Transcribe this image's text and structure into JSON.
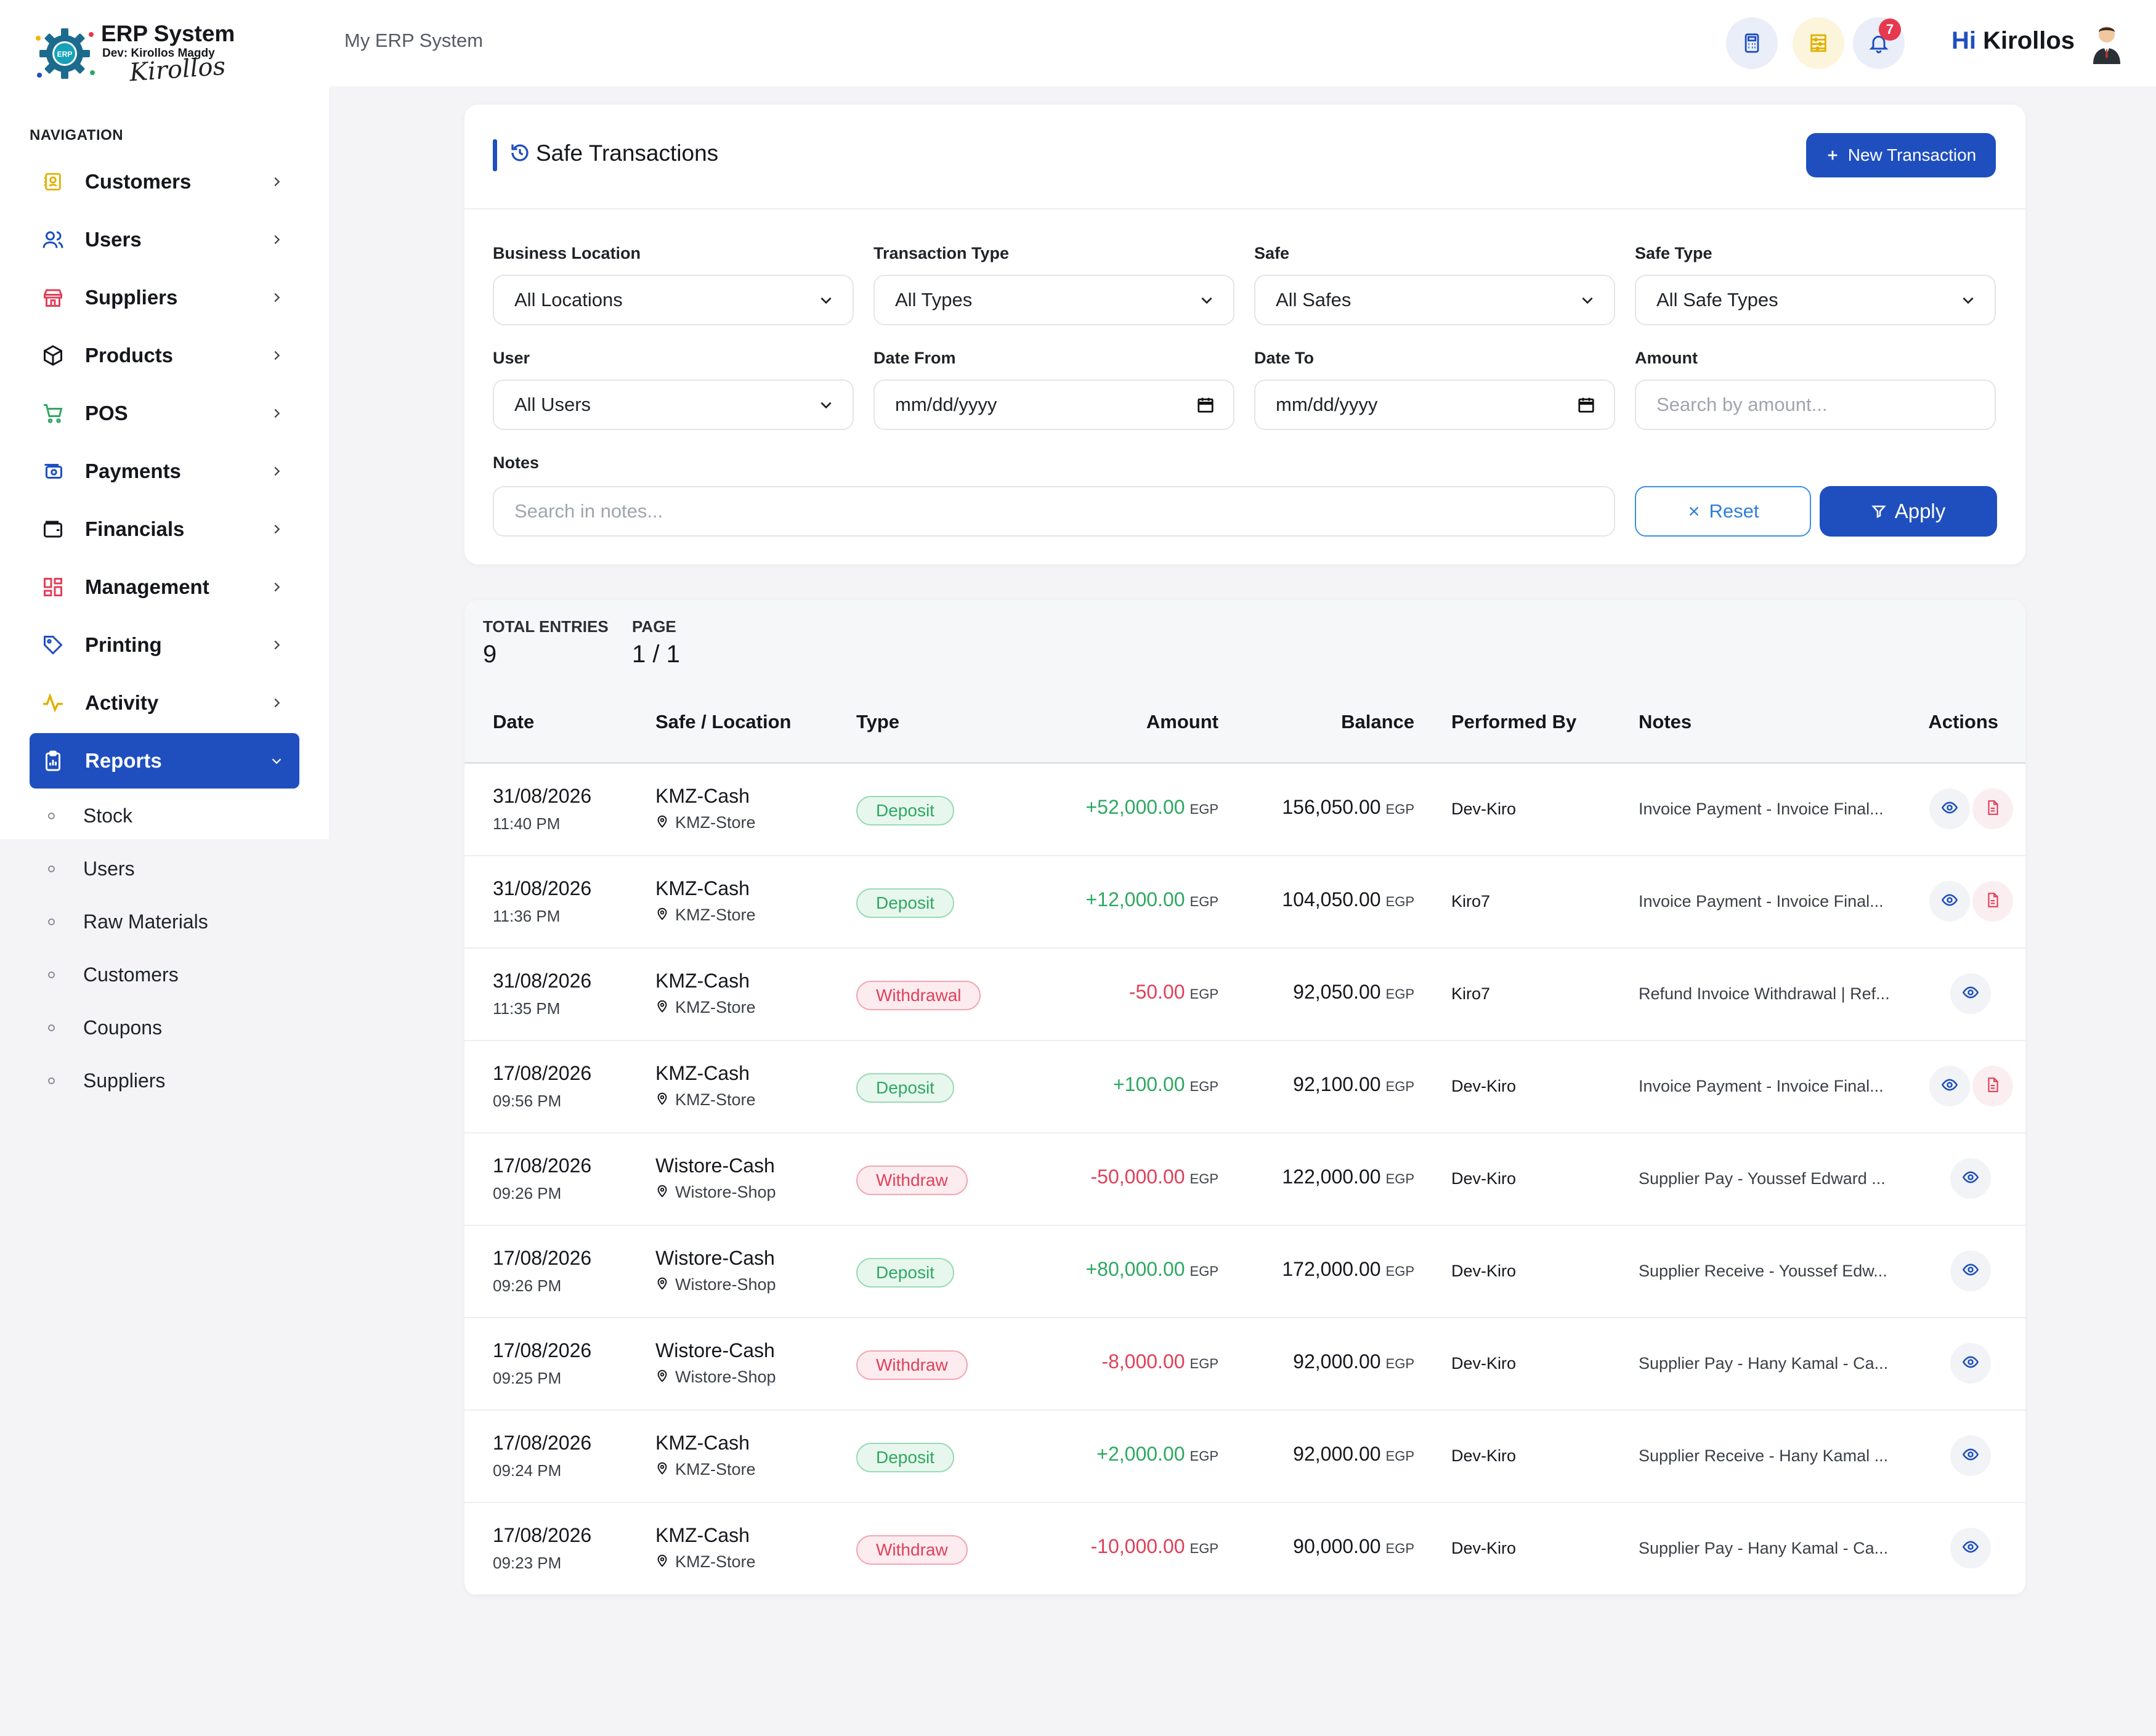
{
  "app": {
    "logo_title": "ERP System",
    "logo_dev": "Dev: Kirollos Magdy",
    "logo_signature": "Kirollos",
    "logo_gear_text": "ERP"
  },
  "sidebar": {
    "heading": "NAVIGATION",
    "items": [
      {
        "label": "Customers",
        "icon": "customers-icon"
      },
      {
        "label": "Users",
        "icon": "users-icon"
      },
      {
        "label": "Suppliers",
        "icon": "store-icon"
      },
      {
        "label": "Products",
        "icon": "box-icon"
      },
      {
        "label": "POS",
        "icon": "cart-icon"
      },
      {
        "label": "Payments",
        "icon": "payment-icon"
      },
      {
        "label": "Financials",
        "icon": "wallet-icon"
      },
      {
        "label": "Management",
        "icon": "grid-icon"
      },
      {
        "label": "Printing",
        "icon": "tag-icon"
      },
      {
        "label": "Activity",
        "icon": "activity-icon"
      },
      {
        "label": "Reports",
        "icon": "clipboard-icon",
        "active": true
      }
    ],
    "sub_items": [
      "Stock",
      "Users",
      "Raw Materials",
      "Customers",
      "Coupons",
      "Suppliers"
    ]
  },
  "topbar": {
    "breadcrumb": "My ERP System",
    "notification_count": "7",
    "greeting_hi": "Hi",
    "greeting_name": "Kirollos"
  },
  "filters": {
    "title": "Safe Transactions",
    "new_button": "New Transaction",
    "business_location": {
      "label": "Business Location",
      "value": "All Locations"
    },
    "transaction_type": {
      "label": "Transaction Type",
      "value": "All Types"
    },
    "safe": {
      "label": "Safe",
      "value": "All Safes"
    },
    "safe_type": {
      "label": "Safe Type",
      "value": "All Safe Types"
    },
    "user": {
      "label": "User",
      "value": "All Users"
    },
    "date_from": {
      "label": "Date From",
      "value": "mm/dd/yyyy"
    },
    "date_to": {
      "label": "Date To",
      "value": "mm/dd/yyyy"
    },
    "amount": {
      "label": "Amount",
      "placeholder": "Search by amount..."
    },
    "notes": {
      "label": "Notes",
      "placeholder": "Search in notes..."
    },
    "reset_button": "Reset",
    "apply_button": "Apply"
  },
  "stats": {
    "total_label": "TOTAL ENTRIES",
    "total_value": "9",
    "page_label": "PAGE",
    "page_value": "1 / 1"
  },
  "table": {
    "columns": [
      "Date",
      "Safe / Location",
      "Type",
      "Amount",
      "Balance",
      "Performed By",
      "Notes",
      "Actions"
    ],
    "currency": "EGP",
    "rows": [
      {
        "date": "31/08/2026",
        "time": "11:40 PM",
        "safe": "KMZ-Cash",
        "location": "KMZ-Store",
        "type": "Deposit",
        "amount": "+52,000.00",
        "balance": "156,050.00",
        "by": "Dev-Kiro",
        "notes": "Invoice Payment - Invoice Final...",
        "pdf": true
      },
      {
        "date": "31/08/2026",
        "time": "11:36 PM",
        "safe": "KMZ-Cash",
        "location": "KMZ-Store",
        "type": "Deposit",
        "amount": "+12,000.00",
        "balance": "104,050.00",
        "by": "Kiro7",
        "notes": "Invoice Payment - Invoice Final...",
        "pdf": true
      },
      {
        "date": "31/08/2026",
        "time": "11:35 PM",
        "safe": "KMZ-Cash",
        "location": "KMZ-Store",
        "type": "Withdrawal",
        "amount": "-50.00",
        "balance": "92,050.00",
        "by": "Kiro7",
        "notes": "Refund Invoice Withdrawal | Ref...",
        "pdf": false
      },
      {
        "date": "17/08/2026",
        "time": "09:56 PM",
        "safe": "KMZ-Cash",
        "location": "KMZ-Store",
        "type": "Deposit",
        "amount": "+100.00",
        "balance": "92,100.00",
        "by": "Dev-Kiro",
        "notes": "Invoice Payment - Invoice Final...",
        "pdf": true
      },
      {
        "date": "17/08/2026",
        "time": "09:26 PM",
        "safe": "Wistore-Cash",
        "location": "Wistore-Shop",
        "type": "Withdraw",
        "amount": "-50,000.00",
        "balance": "122,000.00",
        "by": "Dev-Kiro",
        "notes": "Supplier Pay - Youssef Edward ...",
        "pdf": false
      },
      {
        "date": "17/08/2026",
        "time": "09:26 PM",
        "safe": "Wistore-Cash",
        "location": "Wistore-Shop",
        "type": "Deposit",
        "amount": "+80,000.00",
        "balance": "172,000.00",
        "by": "Dev-Kiro",
        "notes": "Supplier Receive - Youssef Edw...",
        "pdf": false
      },
      {
        "date": "17/08/2026",
        "time": "09:25 PM",
        "safe": "Wistore-Cash",
        "location": "Wistore-Shop",
        "type": "Withdraw",
        "amount": "-8,000.00",
        "balance": "92,000.00",
        "by": "Dev-Kiro",
        "notes": "Supplier Pay - Hany Kamal - Ca...",
        "pdf": false
      },
      {
        "date": "17/08/2026",
        "time": "09:24 PM",
        "safe": "KMZ-Cash",
        "location": "KMZ-Store",
        "type": "Deposit",
        "amount": "+2,000.00",
        "balance": "92,000.00",
        "by": "Dev-Kiro",
        "notes": "Supplier Receive - Hany Kamal ...",
        "pdf": false
      },
      {
        "date": "17/08/2026",
        "time": "09:23 PM",
        "safe": "KMZ-Cash",
        "location": "KMZ-Store",
        "type": "Withdraw",
        "amount": "-10,000.00",
        "balance": "90,000.00",
        "by": "Dev-Kiro",
        "notes": "Supplier Pay - Hany Kamal - Ca...",
        "pdf": false
      }
    ]
  },
  "colors": {
    "primary": "#1f4fbf",
    "deposit": "#2ea862",
    "withdraw": "#e0405a"
  }
}
